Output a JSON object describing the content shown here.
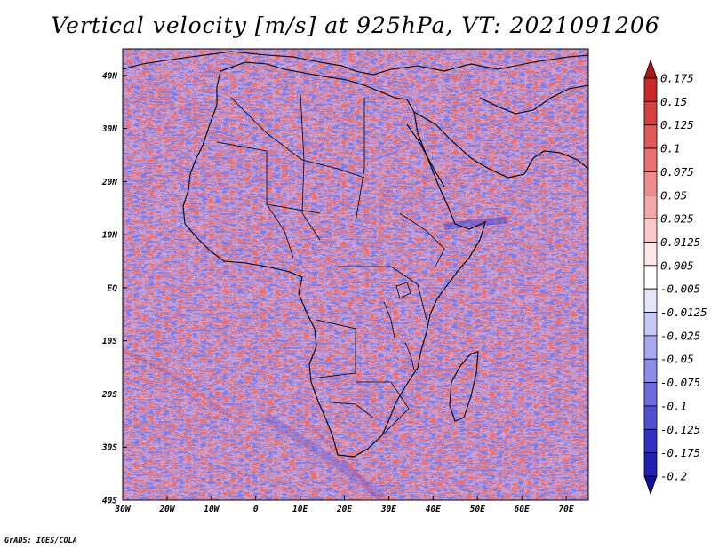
{
  "title": "Vertical velocity [m/s] at 925hPa, VT: 2021091206",
  "credit": "GrADS: IGES/COLA",
  "map": {
    "lon_range": [
      -30,
      75
    ],
    "lat_range": [
      -40,
      45
    ],
    "lat_ticks": [
      {
        "value": 40,
        "label": "40N"
      },
      {
        "value": 30,
        "label": "30N"
      },
      {
        "value": 20,
        "label": "20N"
      },
      {
        "value": 10,
        "label": "10N"
      },
      {
        "value": 0,
        "label": "EQ"
      },
      {
        "value": -10,
        "label": "10S"
      },
      {
        "value": -20,
        "label": "20S"
      },
      {
        "value": -30,
        "label": "30S"
      },
      {
        "value": -40,
        "label": "40S"
      }
    ],
    "lon_ticks": [
      {
        "value": -30,
        "label": "30W"
      },
      {
        "value": -20,
        "label": "20W"
      },
      {
        "value": -10,
        "label": "10W"
      },
      {
        "value": 0,
        "label": "0"
      },
      {
        "value": 10,
        "label": "10E"
      },
      {
        "value": 20,
        "label": "20E"
      },
      {
        "value": 30,
        "label": "30E"
      },
      {
        "value": 40,
        "label": "40E"
      },
      {
        "value": 50,
        "label": "50E"
      },
      {
        "value": 60,
        "label": "60E"
      },
      {
        "value": 70,
        "label": "70E"
      }
    ]
  },
  "colorbar": {
    "labels": [
      "0.175",
      "0.15",
      "0.125",
      "0.1",
      "0.075",
      "0.05",
      "0.025",
      "0.0125",
      "0.005",
      "-0.005",
      "-0.0125",
      "-0.025",
      "-0.05",
      "-0.075",
      "-0.1",
      "-0.125",
      "-0.175",
      "-0.2"
    ],
    "colors": [
      "#b01818",
      "#c82828",
      "#d84040",
      "#e45858",
      "#ec7070",
      "#f28c8c",
      "#f6a8a8",
      "#fac8c8",
      "#fde6e6",
      "#ffffff",
      "#e6e6fb",
      "#c8c8f6",
      "#a8a8f0",
      "#8c8cea",
      "#6c6ce0",
      "#5050d4",
      "#3030c4",
      "#2020b4",
      "#1010a0"
    ]
  }
}
